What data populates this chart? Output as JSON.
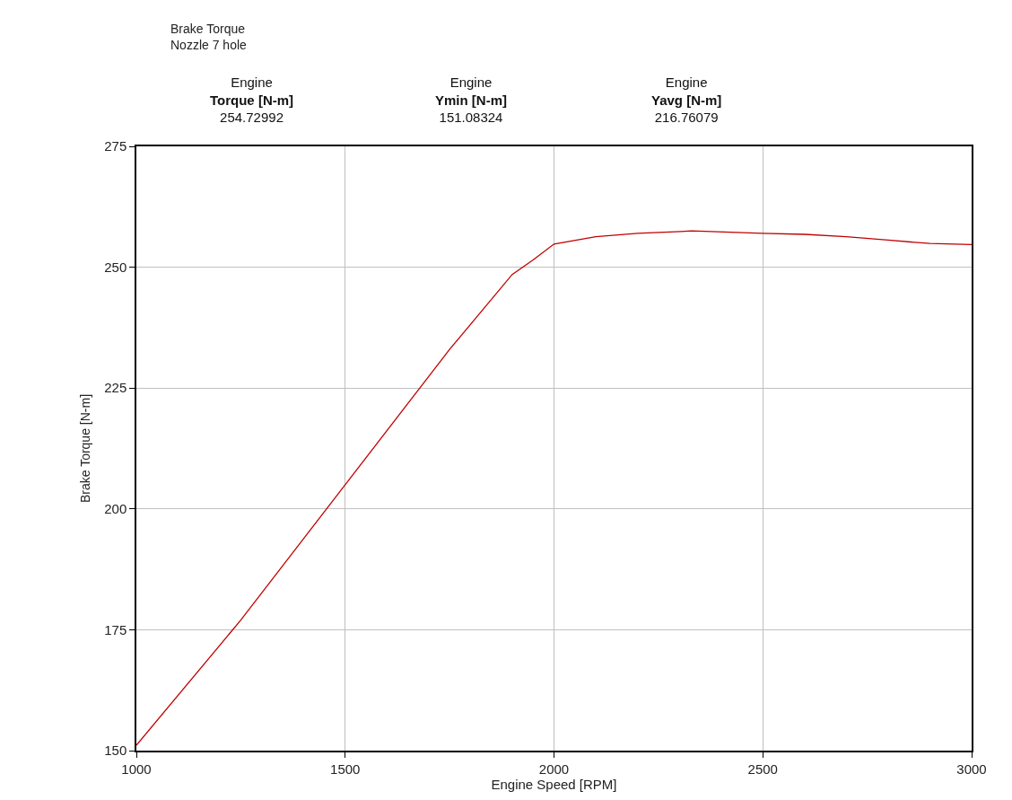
{
  "chart_data": {
    "type": "line",
    "title": "Brake Torque",
    "subtitle": "Nozzle 7 hole",
    "xlabel": "Engine Speed [RPM]",
    "ylabel": "Brake Torque [N-m]",
    "annotations": [
      "Engine\nTorque [N-m]\n254.72992",
      "Engine\nYmin [N-m]\n151.08324",
      "Engine\nYavg [N-m]\n216.76079"
    ],
    "series": [
      {
        "color": "#c00000",
        "x": [
          1000,
          1250,
          1500,
          1750,
          1900,
          1950,
          2000,
          2100,
          2200,
          2330,
          2500,
          2600,
          2700,
          2800,
          2900,
          3000
        ],
        "values": [
          151.1,
          177,
          205,
          233,
          248.5,
          251.5,
          254.8,
          256.3,
          257.0,
          257.5,
          257.0,
          256.8,
          256.3,
          255.6,
          254.9,
          254.7
        ]
      }
    ],
    "xlim": [
      1000,
      3000
    ],
    "xticks": [
      1000,
      1500,
      2000,
      2500,
      3000
    ],
    "ylim": [
      150,
      275
    ],
    "yticks": [
      150,
      175,
      200,
      225,
      250,
      275
    ],
    "grid": true,
    "line_style": "solid"
  }
}
